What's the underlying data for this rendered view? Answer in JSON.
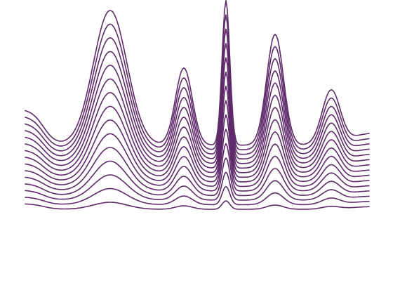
{
  "artwork": {
    "stroke_color": "#5e2a6a",
    "background_color": "#ffffff",
    "line_count": 15
  }
}
